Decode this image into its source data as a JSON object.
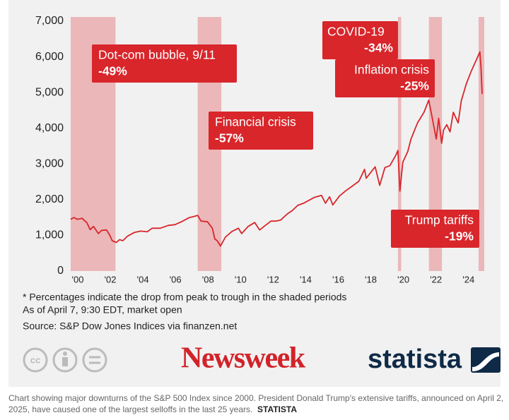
{
  "chart_data": {
    "type": "line",
    "color": "#d8262b",
    "x": [
      2000.0,
      2000.2,
      2000.4,
      2000.7,
      2001.0,
      2001.2,
      2001.4,
      2001.7,
      2001.9,
      2002.2,
      2002.4,
      2002.55,
      2002.8,
      2003.0,
      2003.2,
      2003.5,
      2003.9,
      2004.3,
      2004.7,
      2005.0,
      2005.5,
      2006.0,
      2006.4,
      2006.8,
      2007.3,
      2007.5,
      2007.8,
      2008.0,
      2008.4,
      2008.7,
      2008.85,
      2009.0,
      2009.2,
      2009.5,
      2009.9,
      2010.3,
      2010.5,
      2010.9,
      2011.3,
      2011.6,
      2011.9,
      2012.3,
      2012.6,
      2012.9,
      2013.3,
      2013.6,
      2013.95,
      2014.3,
      2014.7,
      2014.95,
      2015.4,
      2015.65,
      2015.9,
      2016.1,
      2016.5,
      2016.9,
      2017.3,
      2017.7,
      2018.05,
      2018.15,
      2018.7,
      2018.98,
      2019.3,
      2019.6,
      2019.95,
      2020.1,
      2020.22,
      2020.4,
      2020.7,
      2020.9,
      2021.3,
      2021.7,
      2021.99,
      2022.2,
      2022.45,
      2022.6,
      2022.78,
      2022.9,
      2023.1,
      2023.3,
      2023.5,
      2023.8,
      2023.99,
      2024.3,
      2024.6,
      2024.9,
      2025.13,
      2025.2,
      2025.27
    ],
    "values": [
      1450,
      1500,
      1450,
      1480,
      1350,
      1160,
      1250,
      1050,
      1140,
      1150,
      1000,
      850,
      800,
      880,
      850,
      980,
      1080,
      1120,
      1100,
      1200,
      1200,
      1280,
      1300,
      1380,
      1500,
      1520,
      1560,
      1400,
      1380,
      1200,
      900,
      850,
      700,
      950,
      1110,
      1200,
      1050,
      1250,
      1360,
      1150,
      1260,
      1400,
      1400,
      1430,
      1600,
      1690,
      1840,
      1900,
      2000,
      2060,
      2120,
      1900,
      2080,
      1850,
      2100,
      2250,
      2380,
      2520,
      2850,
      2600,
      2920,
      2400,
      2900,
      2950,
      3230,
      3380,
      2240,
      3050,
      3350,
      3700,
      4150,
      4450,
      4790,
      4300,
      3700,
      4280,
      3580,
      3950,
      4100,
      3900,
      4450,
      4150,
      4770,
      5250,
      5600,
      5900,
      6140,
      5700,
      4960
    ],
    "xlim": [
      2000,
      2025.4
    ],
    "ylim": [
      0,
      7000
    ],
    "grid": false,
    "yticks": [
      0,
      {
        "value": 1000,
        "label": "1,000"
      },
      {
        "value": 2000,
        "label": "2,000"
      },
      {
        "value": 3000,
        "label": "3,000"
      },
      {
        "value": 4000,
        "label": "4,000"
      },
      {
        "value": 5000,
        "label": "5,000"
      },
      {
        "value": 6000,
        "label": "6,000"
      },
      {
        "value": 7000,
        "label": "7,000"
      }
    ],
    "xticks": [
      {
        "value": 2000,
        "label": "'00"
      },
      {
        "value": 2002,
        "label": "'02"
      },
      {
        "value": 2004,
        "label": "'04"
      },
      {
        "value": 2006,
        "label": "'06"
      },
      {
        "value": 2008,
        "label": "'08"
      },
      {
        "value": 2010,
        "label": "'10"
      },
      {
        "value": 2012,
        "label": "'12"
      },
      {
        "value": 2014,
        "label": "'14"
      },
      {
        "value": 2016,
        "label": "'16"
      },
      {
        "value": 2018,
        "label": "'18"
      },
      {
        "value": 2020,
        "label": "'20"
      },
      {
        "value": 2022,
        "label": "'22"
      },
      {
        "value": 2024,
        "label": "'24"
      }
    ],
    "shaded_periods": [
      {
        "start": 2000.0,
        "end": 2002.75,
        "label": "Dot-com bubble, 9/11",
        "change": "-49%"
      },
      {
        "start": 2007.8,
        "end": 2009.25,
        "label": "Financial crisis",
        "change": "-57%"
      },
      {
        "start": 2020.1,
        "end": 2020.3,
        "label": "COVID-19",
        "change": "-34%"
      },
      {
        "start": 2022.0,
        "end": 2022.8,
        "label": "Inflation crisis",
        "change": "-25%"
      },
      {
        "start": 2025.05,
        "end": 2025.4,
        "label": "Trump tariffs",
        "change": "-19%"
      }
    ],
    "notes": [
      "* Percentages indicate the drop from peak to trough in the shaded periods",
      "As of April 7, 9:30 EDT, market open"
    ],
    "source": "Source: S&P Dow Jones Indices via finanzen.net"
  },
  "logos": {
    "publisher": "Newsweek",
    "provider": "statista"
  },
  "caption": {
    "lines": [
      "Chart showing major downturns of the S&P 500 Index since 2000. President Donald Trump's extensive tariffs, announced on April 2,",
      "2025, have caused one of the largest selloffs in the last 25 years."
    ],
    "credit": "STATISTA"
  }
}
